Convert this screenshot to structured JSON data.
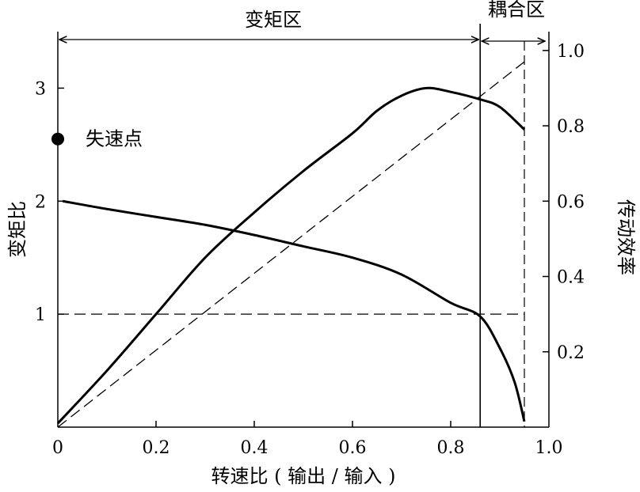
{
  "chart_data": {
    "type": "line",
    "xlabel": "转速比 ( 输出 / 输入 )",
    "ylabel_left": "变矩比",
    "ylabel_right": "传动效率",
    "xlim": [
      0,
      1.0
    ],
    "ylim_left": [
      0,
      3.5
    ],
    "ylim_right": [
      0,
      1.05
    ],
    "x_ticks": [
      {
        "value": 0,
        "label": "0"
      },
      {
        "value": 0.2,
        "label": "0.2"
      },
      {
        "value": 0.4,
        "label": "0.4"
      },
      {
        "value": 0.6,
        "label": "0.6"
      },
      {
        "value": 0.8,
        "label": "0.8"
      },
      {
        "value": 1.0,
        "label": "1.0"
      }
    ],
    "y_left_ticks": [
      {
        "value": 1,
        "label": "1"
      },
      {
        "value": 2,
        "label": "2"
      },
      {
        "value": 3,
        "label": "3"
      }
    ],
    "y_right_ticks": [
      {
        "value": 0.2,
        "label": "0.2"
      },
      {
        "value": 0.4,
        "label": "0.4"
      },
      {
        "value": 0.6,
        "label": "0.6"
      },
      {
        "value": 0.8,
        "label": "0.8"
      },
      {
        "value": 1.0,
        "label": "1.0"
      }
    ],
    "regions": {
      "torque_region_label": "变矩区",
      "coupling_region_label": "耦合区",
      "coupling_start": 0.86,
      "coupling_end": 0.95
    },
    "stall_point": {
      "label": "失速点",
      "x": 0,
      "y": 2.55
    },
    "series": [
      {
        "axis": "left",
        "style": "solid",
        "x": [
          0.01,
          0.1,
          0.2,
          0.3,
          0.4,
          0.5,
          0.6,
          0.7,
          0.8,
          0.86,
          0.9,
          0.93,
          0.95
        ],
        "y": [
          2.0,
          1.93,
          1.86,
          1.79,
          1.7,
          1.6,
          1.5,
          1.35,
          1.1,
          0.98,
          0.7,
          0.4,
          0.05
        ]
      },
      {
        "axis": "right",
        "style": "solid",
        "x": [
          0,
          0.1,
          0.2,
          0.3,
          0.4,
          0.5,
          0.6,
          0.65,
          0.7,
          0.75,
          0.8,
          0.86,
          0.9,
          0.95
        ],
        "y": [
          0.01,
          0.15,
          0.3,
          0.45,
          0.57,
          0.68,
          0.78,
          0.84,
          0.88,
          0.9,
          0.89,
          0.87,
          0.85,
          0.79
        ]
      },
      {
        "axis": "right",
        "style": "dashed",
        "x": [
          0,
          0.95
        ],
        "y": [
          0,
          0.97
        ]
      },
      {
        "axis": "left",
        "style": "dashed",
        "x": [
          0,
          0.95
        ],
        "y": [
          1,
          1
        ]
      }
    ]
  }
}
